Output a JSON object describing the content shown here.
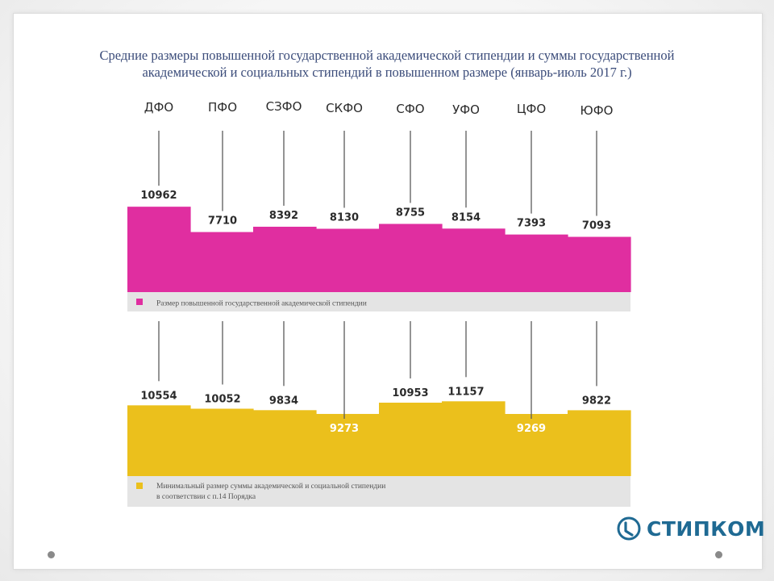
{
  "slide": {
    "title_line1": "Средние размеры повышенной государственной академической стипендии и суммы государственной",
    "title_line2": "академической и социальных стипендий в повышенном размере (январь-июль 2017 г.)"
  },
  "logo": {
    "text": "СТИПКОМ",
    "icon": "stipkom-logo-icon"
  },
  "nav": {
    "prev_icon": "dot-icon",
    "next_icon": "dot-icon"
  },
  "colors": {
    "magenta": "#e02ea0",
    "yellow": "#ebc01c",
    "legend_band": "#e4e4e4",
    "text_dark": "#2b2b2b",
    "text_light": "#ffffff",
    "title": "#3b4c7a",
    "logo": "#1f6a93"
  },
  "chart_data": [
    {
      "type": "bar",
      "categories": [
        "ДФО",
        "ПФО",
        "СЗФО",
        "СКФО",
        "СФО",
        "УФО",
        "ЦФО",
        "ЮФО"
      ],
      "series": [
        {
          "name": "Размер повышенной государственной академической стипендии",
          "values": [
            10962,
            7710,
            8392,
            8130,
            8755,
            8154,
            7393,
            7093
          ]
        }
      ],
      "legend": "bottom",
      "ylim": [
        0,
        14500
      ]
    },
    {
      "type": "bar",
      "categories": [
        "ДФО",
        "ПФО",
        "СЗФО",
        "СКФО",
        "СФО",
        "УФО",
        "ЦФО",
        "ЮФО"
      ],
      "series": [
        {
          "name": "Минимальный размер суммы академической и социальной стипендии в соответствии с п.14 Порядка",
          "legend_line1": "Минимальный размер суммы академической и социальной стипендии",
          "legend_line2": "в соответствии с п.14 Порядка",
          "values": [
            10554,
            10052,
            9834,
            9273,
            10953,
            11157,
            9269,
            9822
          ]
        }
      ],
      "legend": "bottom",
      "ylim": [
        0,
        19500
      ]
    }
  ]
}
